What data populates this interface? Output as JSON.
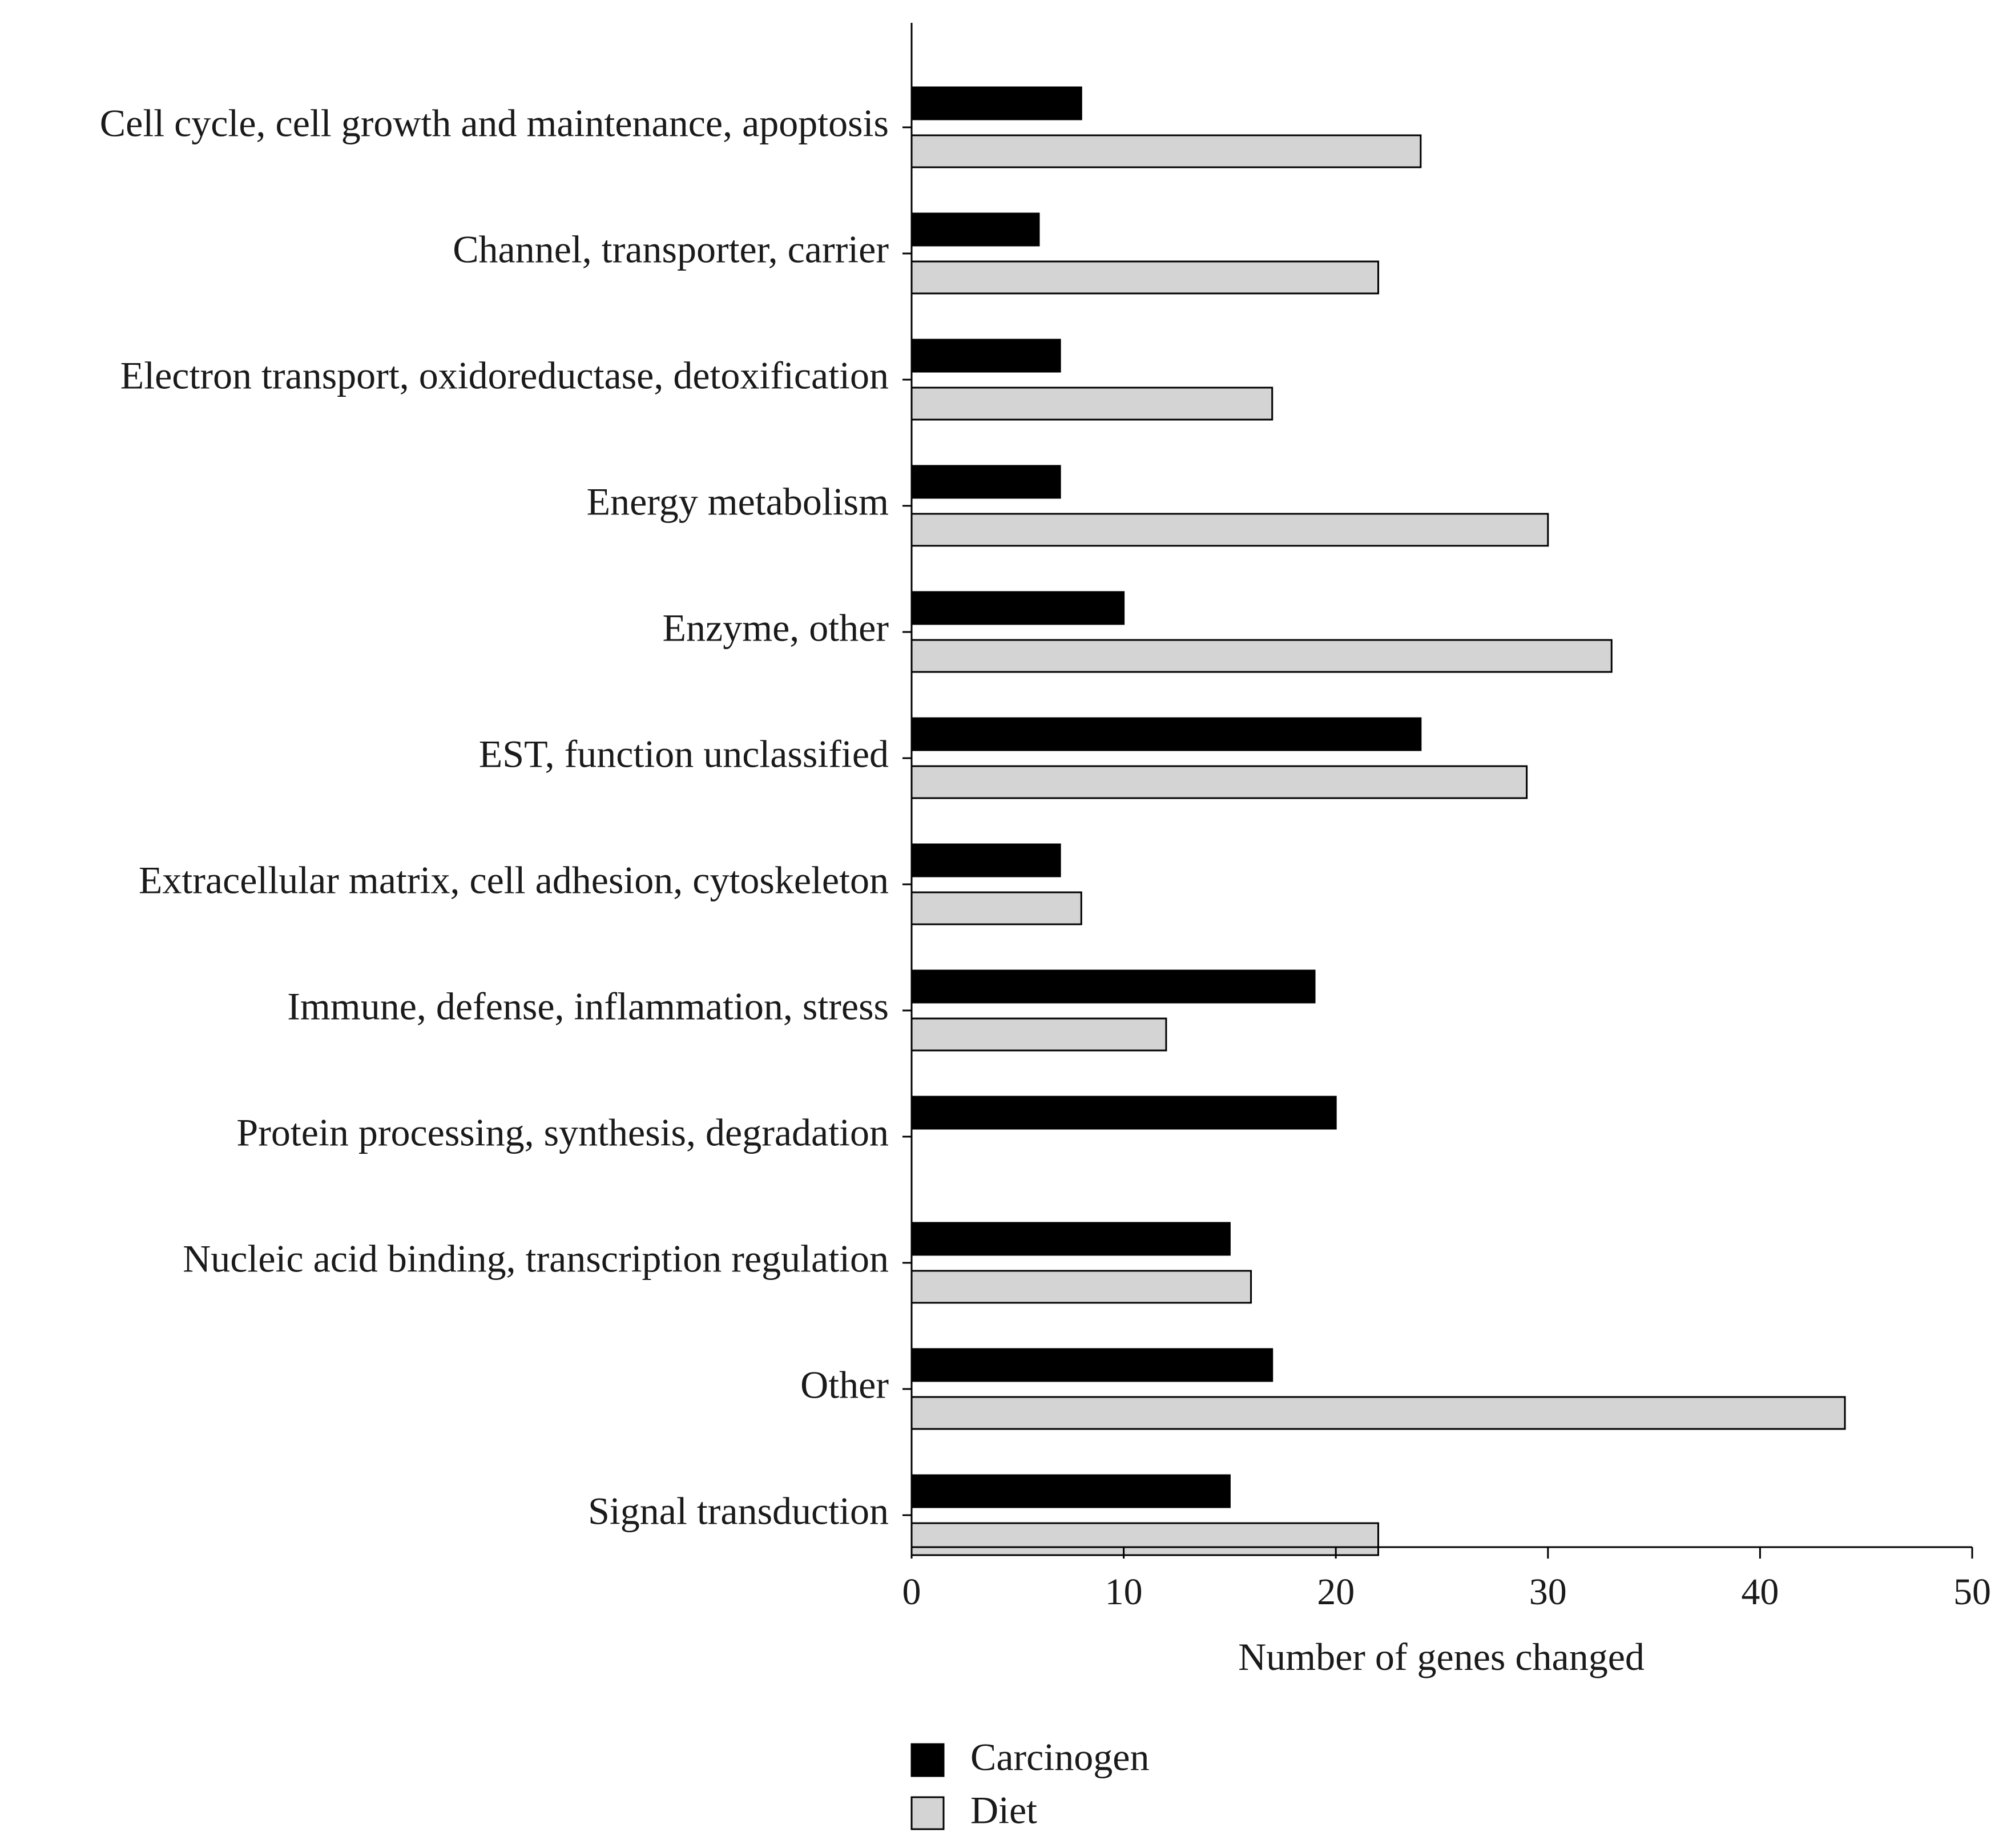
{
  "chart_data": {
    "type": "bar",
    "orientation": "horizontal",
    "title": "",
    "xlabel": "Number of genes changed",
    "ylabel": "",
    "xlim": [
      0,
      50
    ],
    "xticks": [
      0,
      10,
      20,
      30,
      40,
      50
    ],
    "grid": false,
    "legend_position": "bottom-left",
    "categories": [
      "Cell cycle, cell growth and maintenance, apoptosis",
      "Channel, transporter, carrier",
      "Electron transport, oxidoreductase, detoxification",
      "Energy metabolism",
      "Enzyme, other",
      "EST, function unclassified",
      "Extracellular matrix, cell adhesion, cytoskeleton",
      "Immune, defense, inflammation, stress",
      "Protein processing, synthesis, degradation",
      "Nucleic acid binding, transcription regulation",
      "Other",
      "Signal transduction"
    ],
    "series": [
      {
        "name": "Carcinogen",
        "color": "#000000",
        "values": [
          8,
          6,
          7,
          7,
          10,
          24,
          7,
          19,
          20,
          15,
          17,
          15
        ]
      },
      {
        "name": "Diet",
        "color": "#d4d4d4",
        "values": [
          24,
          22,
          17,
          30,
          33,
          29,
          8,
          12,
          0,
          16,
          44,
          22
        ]
      }
    ]
  }
}
